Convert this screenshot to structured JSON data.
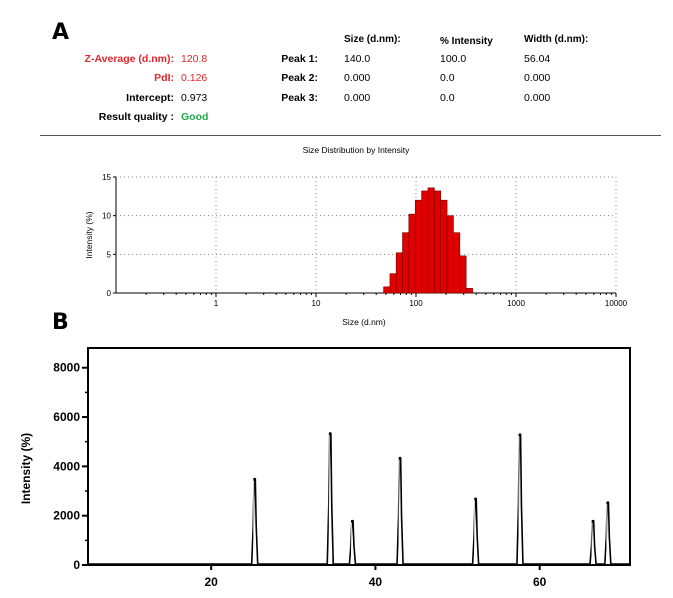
{
  "panel_a": {
    "letter": "A",
    "summary": [
      {
        "label": "Z-Average (d.nm):",
        "value": "120.8",
        "color": "#e0262b"
      },
      {
        "label": "PdI:",
        "value": "0.126",
        "color": "#e0262b"
      },
      {
        "label": "Intercept:",
        "value": "0.973",
        "color": "#000000"
      },
      {
        "label": "Result quality :",
        "value": "Good",
        "color": "#22a84a"
      }
    ],
    "peak_headers": [
      "Size (d.nm):",
      "% Intensity",
      "Width (d.nm):"
    ],
    "peaks": [
      {
        "label": "Peak 1:",
        "size": "140.0",
        "intensity": "100.0",
        "width": "56.04"
      },
      {
        "label": "Peak 2:",
        "size": "0.000",
        "intensity": "0.0",
        "width": "0.000"
      },
      {
        "label": "Peak 3:",
        "size": "0.000",
        "intensity": "0.0",
        "width": "0.000"
      }
    ]
  },
  "panel_b": {
    "letter": "B"
  },
  "chart_data": [
    {
      "type": "bar",
      "title": "Size Distribution by Intensity",
      "xlabel": "Size (d.nm)",
      "ylabel": "Intensity (%)",
      "xscale": "log",
      "xlim": [
        0.1,
        10000
      ],
      "ylim": [
        0,
        15
      ],
      "xticks": [
        "1",
        "10",
        "100",
        "1000",
        "10000"
      ],
      "yticks": [
        "0",
        "5",
        "10",
        "15"
      ],
      "grid": true,
      "bar_color": "#e00000",
      "sizes": [
        51,
        59,
        68,
        79,
        91,
        106,
        122,
        142,
        164,
        190,
        220,
        255,
        295,
        342
      ],
      "values": [
        0.8,
        2.5,
        5.2,
        7.8,
        10.2,
        12.0,
        13.2,
        13.6,
        13.2,
        12.0,
        10.0,
        7.8,
        4.8,
        0.6
      ]
    },
    {
      "type": "line",
      "xlabel": "",
      "ylabel": "Intensity (%)",
      "xlim": [
        5,
        71
      ],
      "ylim": [
        0,
        8800
      ],
      "xticks": [
        "20",
        "40",
        "60"
      ],
      "yticks": [
        "0",
        "2000",
        "4000",
        "6000",
        "8000"
      ],
      "line_color": "#000000",
      "peaks": [
        {
          "x": 25.3,
          "y": 3500
        },
        {
          "x": 34.5,
          "y": 5350
        },
        {
          "x": 37.2,
          "y": 1800
        },
        {
          "x": 43.0,
          "y": 4350
        },
        {
          "x": 52.2,
          "y": 2700
        },
        {
          "x": 57.6,
          "y": 5300
        },
        {
          "x": 66.5,
          "y": 1800
        },
        {
          "x": 68.3,
          "y": 2550
        }
      ]
    }
  ]
}
